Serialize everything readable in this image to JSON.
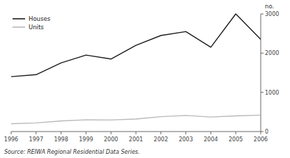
{
  "chart_data": {
    "type": "line",
    "x": [
      1996,
      1997,
      1998,
      1999,
      2000,
      2001,
      2002,
      2003,
      2004,
      2005,
      2006
    ],
    "series": [
      {
        "name": "Houses",
        "color": "#1a1a1a",
        "values": [
          1400,
          1450,
          1750,
          1950,
          1850,
          2200,
          2450,
          2550,
          2150,
          3000,
          2350
        ]
      },
      {
        "name": "Units",
        "color": "#b8b8b8",
        "values": [
          200,
          220,
          270,
          300,
          295,
          320,
          380,
          410,
          370,
          400,
          420
        ]
      }
    ],
    "xlim": [
      1996,
      2006
    ],
    "xticks": [
      1996,
      1997,
      1998,
      1999,
      2000,
      2001,
      2002,
      2003,
      2004,
      2005,
      2006
    ],
    "ylim": [
      0,
      3000
    ],
    "yticks": [
      0,
      1000,
      2000,
      3000
    ],
    "ylabel": "no.",
    "source": "Source: REIWA Regional Residential Data Series.",
    "legend": "upper left",
    "grid": false
  }
}
